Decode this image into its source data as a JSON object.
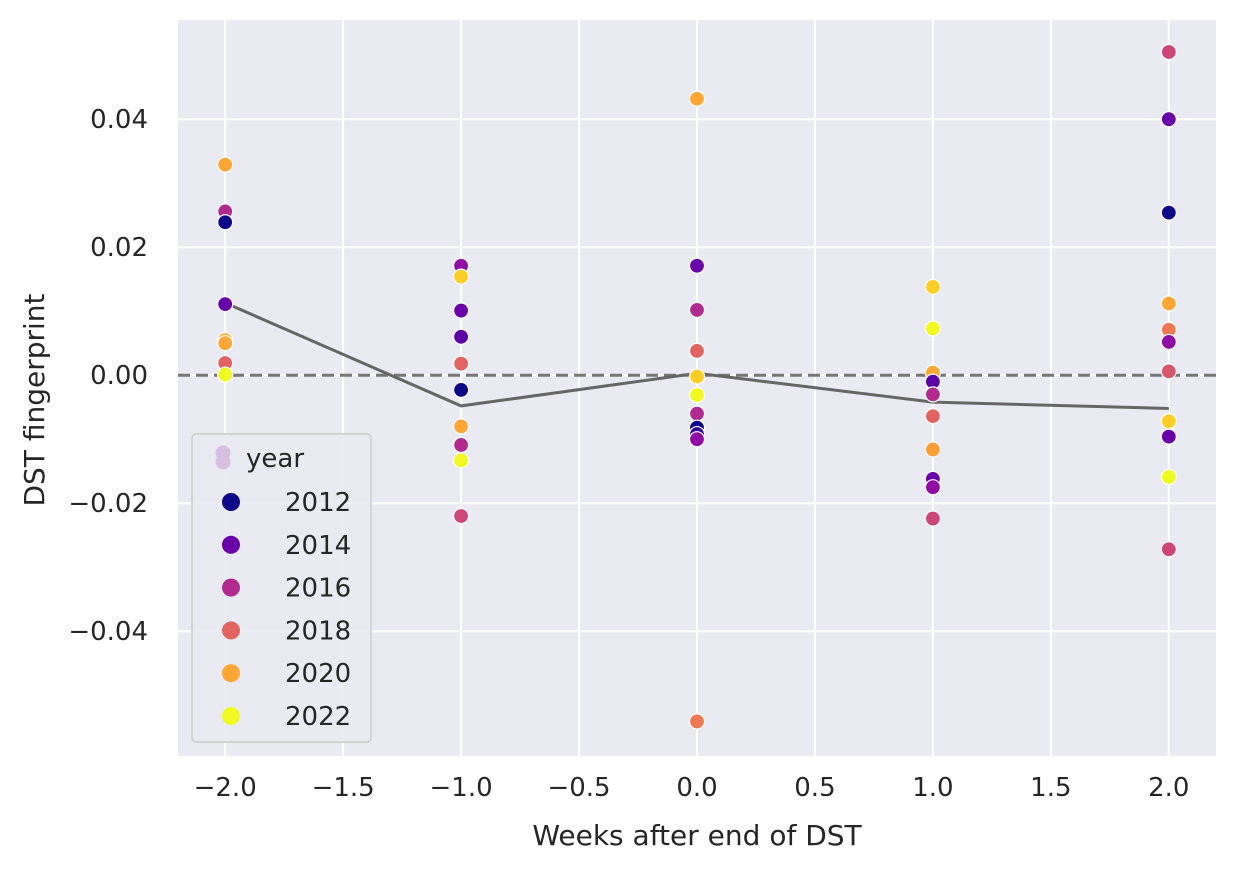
{
  "chart_data": {
    "type": "scatter",
    "xlabel": "Weeks after end of DST",
    "ylabel": "DST fingerprint",
    "xlim": [
      -2.2,
      2.2
    ],
    "ylim": [
      -0.0595,
      0.0555
    ],
    "x_ticks": [
      -2.0,
      -1.5,
      -1.0,
      -0.5,
      0.0,
      0.5,
      1.0,
      1.5,
      2.0
    ],
    "x_tick_labels": [
      "−2.0",
      "−1.5",
      "−1.0",
      "−0.5",
      "0.0",
      "0.5",
      "1.0",
      "1.5",
      "2.0"
    ],
    "y_ticks": [
      -0.04,
      -0.02,
      0.0,
      0.02,
      0.04
    ],
    "y_tick_labels": [
      "−0.04",
      "−0.02",
      "0.00",
      "0.02",
      "0.04"
    ],
    "grid": true,
    "background": "#eaeaf2",
    "reference_line": {
      "y": 0.0,
      "style": "dashed",
      "color": "#777777"
    },
    "mean_line": {
      "color": "#666666",
      "points": [
        [
          -2,
          0.0113
        ],
        [
          -1,
          -0.0048
        ],
        [
          0,
          0.0003
        ],
        [
          1,
          -0.0042
        ],
        [
          2,
          -0.0052
        ]
      ]
    },
    "legend": {
      "title": "year",
      "placement": "lower-left",
      "entries": [
        {
          "label": "2012",
          "color": "#0d0887"
        },
        {
          "label": "2014",
          "color": "#6a00a8"
        },
        {
          "label": "2016",
          "color": "#b12a90"
        },
        {
          "label": "2018",
          "color": "#e16462"
        },
        {
          "label": "2020",
          "color": "#fca636"
        },
        {
          "label": "2022",
          "color": "#f0f921"
        }
      ]
    },
    "points": [
      {
        "x": -2,
        "y": 0.0329,
        "color": "#fca636"
      },
      {
        "x": -2,
        "y": 0.0256,
        "color": "#b12a90"
      },
      {
        "x": -2,
        "y": 0.0239,
        "color": "#0d0887"
      },
      {
        "x": -2,
        "y": 0.0111,
        "color": "#6a00a8"
      },
      {
        "x": -2,
        "y": 0.0055,
        "color": "#fbb32f"
      },
      {
        "x": -2,
        "y": 0.005,
        "color": "#fca636"
      },
      {
        "x": -2,
        "y": 0.0019,
        "color": "#e16462"
      },
      {
        "x": -2,
        "y": 0.0001,
        "color": "#f0f921"
      },
      {
        "x": -1,
        "y": 0.0171,
        "color": "#8f0da4"
      },
      {
        "x": -1,
        "y": 0.0154,
        "color": "#fcce25"
      },
      {
        "x": -1,
        "y": 0.0101,
        "color": "#6a00a8"
      },
      {
        "x": -1,
        "y": 0.006,
        "color": "#5c01a6"
      },
      {
        "x": -1,
        "y": 0.0018,
        "color": "#e16462"
      },
      {
        "x": -1,
        "y": -0.0023,
        "color": "#0d0887"
      },
      {
        "x": -1,
        "y": -0.008,
        "color": "#fca636"
      },
      {
        "x": -1,
        "y": -0.0109,
        "color": "#b12a90"
      },
      {
        "x": -1,
        "y": -0.0133,
        "color": "#f0f921"
      },
      {
        "x": -1,
        "y": -0.022,
        "color": "#cc4778"
      },
      {
        "x": 0,
        "y": 0.0432,
        "color": "#fca636"
      },
      {
        "x": 0,
        "y": 0.0171,
        "color": "#6a00a8"
      },
      {
        "x": 0,
        "y": 0.0102,
        "color": "#b12a90"
      },
      {
        "x": 0,
        "y": 0.0038,
        "color": "#e16462"
      },
      {
        "x": 0,
        "y": -0.0002,
        "color": "#fcce25"
      },
      {
        "x": 0,
        "y": -0.0031,
        "color": "#f0f921"
      },
      {
        "x": 0,
        "y": -0.006,
        "color": "#b12a90"
      },
      {
        "x": 0,
        "y": -0.0082,
        "color": "#0d0887"
      },
      {
        "x": 0,
        "y": -0.0092,
        "color": "#350498"
      },
      {
        "x": 0,
        "y": -0.01,
        "color": "#8f0da4"
      },
      {
        "x": 0,
        "y": -0.0541,
        "color": "#ed7953"
      },
      {
        "x": 1,
        "y": 0.0138,
        "color": "#fcce25"
      },
      {
        "x": 1,
        "y": 0.0073,
        "color": "#f0f921"
      },
      {
        "x": 1,
        "y": 0.0004,
        "color": "#fca636"
      },
      {
        "x": 1,
        "y": -0.001,
        "color": "#5c01a6"
      },
      {
        "x": 1,
        "y": -0.003,
        "color": "#b12a90"
      },
      {
        "x": 1,
        "y": -0.0064,
        "color": "#e16462"
      },
      {
        "x": 1,
        "y": -0.0116,
        "color": "#fb9f3a"
      },
      {
        "x": 1,
        "y": -0.0162,
        "color": "#6a00a8"
      },
      {
        "x": 1,
        "y": -0.0175,
        "color": "#8f0da4"
      },
      {
        "x": 1,
        "y": -0.0224,
        "color": "#cc4778"
      },
      {
        "x": 2,
        "y": 0.0505,
        "color": "#cc4778"
      },
      {
        "x": 2,
        "y": 0.04,
        "color": "#6a00a8"
      },
      {
        "x": 2,
        "y": 0.0254,
        "color": "#0d0887"
      },
      {
        "x": 2,
        "y": 0.0112,
        "color": "#fca636"
      },
      {
        "x": 2,
        "y": 0.0071,
        "color": "#ed7953"
      },
      {
        "x": 2,
        "y": 0.0052,
        "color": "#8f0da4"
      },
      {
        "x": 2,
        "y": 0.0006,
        "color": "#d8576b"
      },
      {
        "x": 2,
        "y": -0.0072,
        "color": "#fcce25"
      },
      {
        "x": 2,
        "y": -0.0096,
        "color": "#6a00a8"
      },
      {
        "x": 2,
        "y": -0.0159,
        "color": "#f0f921"
      },
      {
        "x": 2,
        "y": -0.0272,
        "color": "#cc4778"
      }
    ]
  }
}
